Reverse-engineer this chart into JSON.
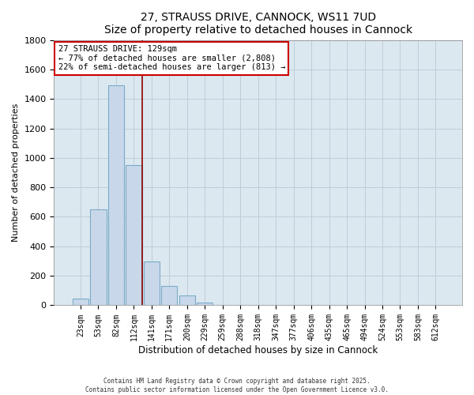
{
  "title": "27, STRAUSS DRIVE, CANNOCK, WS11 7UD",
  "subtitle": "Size of property relative to detached houses in Cannock",
  "xlabel": "Distribution of detached houses by size in Cannock",
  "ylabel": "Number of detached properties",
  "bar_color": "#c8d8ea",
  "bar_edge_color": "#7aaac8",
  "background_color": "#ffffff",
  "plot_bg_color": "#dce8f0",
  "grid_color": "#c0cdd8",
  "categories": [
    "23sqm",
    "53sqm",
    "82sqm",
    "112sqm",
    "141sqm",
    "171sqm",
    "200sqm",
    "229sqm",
    "259sqm",
    "288sqm",
    "318sqm",
    "347sqm",
    "377sqm",
    "406sqm",
    "435sqm",
    "465sqm",
    "494sqm",
    "524sqm",
    "553sqm",
    "583sqm",
    "612sqm"
  ],
  "values": [
    45,
    650,
    1490,
    950,
    295,
    130,
    65,
    20,
    5,
    2,
    1,
    0,
    0,
    0,
    0,
    0,
    0,
    0,
    0,
    0,
    0
  ],
  "ylim": [
    0,
    1800
  ],
  "yticks": [
    0,
    200,
    400,
    600,
    800,
    1000,
    1200,
    1400,
    1600,
    1800
  ],
  "annotation_title": "27 STRAUSS DRIVE: 129sqm",
  "annotation_line1": "← 77% of detached houses are smaller (2,808)",
  "annotation_line2": "22% of semi-detached houses are larger (813) →",
  "vline_x": 3.0,
  "footnote1": "Contains HM Land Registry data © Crown copyright and database right 2025.",
  "footnote2": "Contains public sector information licensed under the Open Government Licence v3.0."
}
